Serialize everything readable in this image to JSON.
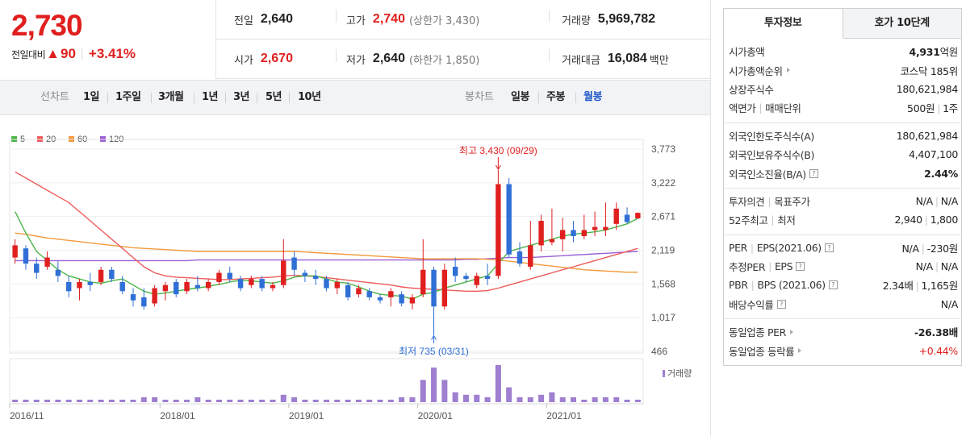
{
  "price": {
    "current": "2,730",
    "change_label": "전일대비",
    "change_value": "90",
    "change_pct": "+3.41%"
  },
  "stats": {
    "prev_close": {
      "label": "전일",
      "value": "2,640"
    },
    "high": {
      "label": "고가",
      "value": "2,740",
      "sub": "(상한가 3,430)"
    },
    "volume": {
      "label": "거래량",
      "value": "5,969,782"
    },
    "open": {
      "label": "시가",
      "value": "2,670"
    },
    "low": {
      "label": "저가",
      "value": "2,640",
      "sub": "(하한가 1,850)"
    },
    "turnover": {
      "label": "거래대금",
      "value": "16,084",
      "unit": "백만"
    }
  },
  "toolbar": {
    "line_label": "선차트",
    "line_periods": [
      "1일",
      "1주일",
      "3개월",
      "1년",
      "3년",
      "5년",
      "10년"
    ],
    "candle_label": "봉차트",
    "candle_periods": [
      "일봉",
      "주봉",
      "월봉"
    ],
    "candle_active": "월봉"
  },
  "colors": {
    "up": "#e01f1f",
    "down": "#2f6fd6",
    "ma5": "#4cb547",
    "ma20": "#ee5b5b",
    "ma60": "#f39a3c",
    "ma120": "#9b5fd6",
    "volume": "#9e7fd0"
  },
  "chart_data": {
    "type": "candlestick",
    "legend": [
      "5",
      "20",
      "60",
      "120"
    ],
    "y_ticks": [
      "3,773",
      "3,222",
      "2,671",
      "2,119",
      "1,568",
      "1,017",
      "466"
    ],
    "y_tick_values": [
      3773,
      3222,
      2671,
      2119,
      1568,
      1017,
      466
    ],
    "ylim": [
      466,
      3773
    ],
    "x_ticks": [
      "2016/11",
      "2018/01",
      "2019/01",
      "2020/01",
      "2021/01"
    ],
    "x_tick_index": [
      0,
      14,
      26,
      38,
      50
    ],
    "high_label": "최고 3,430 (09/29)",
    "low_label": "최저 735 (03/31)",
    "volume_label": "거래량",
    "candles": [
      [
        2000,
        2300,
        1900,
        2200
      ],
      [
        2150,
        2200,
        1800,
        1900
      ],
      [
        1900,
        2000,
        1650,
        1750
      ],
      [
        1850,
        2100,
        1800,
        2000
      ],
      [
        1800,
        1950,
        1600,
        1700
      ],
      [
        1600,
        1700,
        1350,
        1450
      ],
      [
        1500,
        1650,
        1300,
        1600
      ],
      [
        1600,
        1750,
        1450,
        1550
      ],
      [
        1600,
        1850,
        1550,
        1800
      ],
      [
        1800,
        1850,
        1600,
        1650
      ],
      [
        1600,
        1700,
        1400,
        1450
      ],
      [
        1400,
        1500,
        1200,
        1300
      ],
      [
        1350,
        1500,
        1150,
        1200
      ],
      [
        1250,
        1550,
        1200,
        1500
      ],
      [
        1450,
        1600,
        1300,
        1550
      ],
      [
        1600,
        1650,
        1350,
        1400
      ],
      [
        1450,
        1650,
        1400,
        1600
      ],
      [
        1550,
        1700,
        1450,
        1500
      ],
      [
        1500,
        1650,
        1450,
        1600
      ],
      [
        1600,
        1800,
        1550,
        1750
      ],
      [
        1750,
        1850,
        1600,
        1650
      ],
      [
        1650,
        1700,
        1450,
        1500
      ],
      [
        1550,
        1700,
        1500,
        1650
      ],
      [
        1650,
        1700,
        1450,
        1500
      ],
      [
        1500,
        1600,
        1450,
        1550
      ],
      [
        1550,
        2300,
        1500,
        1950
      ],
      [
        2000,
        2100,
        1700,
        1800
      ],
      [
        1750,
        1800,
        1600,
        1700
      ],
      [
        1700,
        1800,
        1550,
        1650
      ],
      [
        1650,
        1700,
        1450,
        1500
      ],
      [
        1500,
        1650,
        1400,
        1600
      ],
      [
        1550,
        1600,
        1300,
        1350
      ],
      [
        1400,
        1550,
        1350,
        1500
      ],
      [
        1450,
        1500,
        1300,
        1350
      ],
      [
        1350,
        1400,
        1250,
        1300
      ],
      [
        1350,
        1500,
        1200,
        1450
      ],
      [
        1400,
        1450,
        1200,
        1250
      ],
      [
        1250,
        1400,
        1150,
        1350
      ],
      [
        1400,
        2300,
        1350,
        1800
      ],
      [
        1800,
        1850,
        735,
        1200
      ],
      [
        1200,
        1900,
        1150,
        1800
      ],
      [
        1850,
        2000,
        1600,
        1700
      ],
      [
        1700,
        1750,
        1600,
        1650
      ],
      [
        1550,
        1750,
        1500,
        1700
      ],
      [
        1700,
        1900,
        1550,
        1650
      ],
      [
        1700,
        3430,
        1650,
        3200
      ],
      [
        3200,
        3300,
        2000,
        2050
      ],
      [
        2100,
        2250,
        1850,
        1900
      ],
      [
        1850,
        2600,
        1800,
        2200
      ],
      [
        2200,
        2700,
        2100,
        2600
      ],
      [
        2250,
        2800,
        2200,
        2300
      ],
      [
        2300,
        2650,
        2100,
        2450
      ],
      [
        2450,
        2600,
        2250,
        2350
      ],
      [
        2350,
        2700,
        2300,
        2450
      ],
      [
        2450,
        2750,
        2350,
        2500
      ],
      [
        2450,
        2900,
        2350,
        2500
      ],
      [
        2550,
        2900,
        2450,
        2800
      ],
      [
        2700,
        2820,
        2550,
        2580
      ],
      [
        2640,
        2740,
        2640,
        2730
      ]
    ],
    "ma5": [
      2750,
      2400,
      2100,
      1950,
      1800,
      1700,
      1650,
      1600,
      1580,
      1620,
      1650,
      1550,
      1450,
      1400,
      1420,
      1450,
      1480,
      1500,
      1530,
      1560,
      1600,
      1630,
      1620,
      1600,
      1580,
      1620,
      1680,
      1700,
      1700,
      1650,
      1600,
      1580,
      1520,
      1450,
      1400,
      1380,
      1370,
      1320,
      1400,
      1430,
      1500,
      1550,
      1600,
      1650,
      1700,
      1900,
      2100,
      2150,
      2200,
      2250,
      2300,
      2350,
      2380,
      2400,
      2420,
      2450,
      2500,
      2550,
      2640
    ],
    "ma20": [
      3400,
      3300,
      3200,
      3100,
      3000,
      2900,
      2750,
      2600,
      2450,
      2300,
      2150,
      2000,
      1850,
      1750,
      1700,
      1680,
      1670,
      1660,
      1650,
      1640,
      1640,
      1650,
      1660,
      1670,
      1680,
      1700,
      1710,
      1700,
      1690,
      1670,
      1650,
      1630,
      1610,
      1590,
      1570,
      1550,
      1520,
      1500,
      1490,
      1480,
      1470,
      1460,
      1450,
      1450,
      1460,
      1500,
      1550,
      1600,
      1650,
      1700,
      1750,
      1800,
      1850,
      1900,
      1950,
      2000,
      2050,
      2100,
      2150
    ],
    "ma60": [
      2400,
      2380,
      2350,
      2320,
      2300,
      2280,
      2260,
      2240,
      2220,
      2200,
      2180,
      2160,
      2150,
      2140,
      2130,
      2120,
      2110,
      2100,
      2100,
      2100,
      2100,
      2100,
      2100,
      2100,
      2100,
      2100,
      2100,
      2090,
      2080,
      2070,
      2060,
      2050,
      2040,
      2030,
      2020,
      2010,
      2000,
      1990,
      1980,
      1980,
      1980,
      1980,
      1980,
      1980,
      1970,
      1960,
      1940,
      1920,
      1900,
      1880,
      1860,
      1840,
      1820,
      1800,
      1790,
      1780,
      1770,
      1760,
      1760
    ],
    "ma120": [
      1950,
      1950,
      1950,
      1950,
      1950,
      1950,
      1950,
      1950,
      1950,
      1950,
      1950,
      1950,
      1950,
      1950,
      1950,
      1950,
      1950,
      1960,
      1960,
      1960,
      1960,
      1960,
      1960,
      1960,
      1960,
      1960,
      1960,
      1960,
      1960,
      1960,
      1960,
      1960,
      1960,
      1960,
      1960,
      1960,
      1960,
      1960,
      1960,
      1960,
      1960,
      1960,
      1970,
      1970,
      1980,
      1990,
      2000,
      2000,
      2000,
      2010,
      2020,
      2030,
      2040,
      2050,
      2060,
      2070,
      2080,
      2090,
      2100
    ],
    "volume": [
      1,
      1,
      1,
      1,
      1,
      1,
      1,
      1,
      1,
      1,
      1,
      1,
      2,
      2,
      1,
      1,
      1,
      2,
      1,
      1,
      1,
      1,
      1,
      1,
      1,
      3,
      2,
      1,
      1,
      1,
      1,
      1,
      1,
      1,
      1,
      1,
      2,
      2,
      9,
      14,
      9,
      4,
      3,
      3,
      2,
      15,
      6,
      2,
      2,
      3,
      4,
      2,
      2,
      1,
      2,
      2,
      2,
      1,
      1
    ]
  },
  "panel": {
    "tabs": [
      "투자정보",
      "호가 10단계"
    ],
    "section1": [
      {
        "label": "시가총액",
        "value_bold": "4,931",
        "value_suffix": "억원"
      },
      {
        "label": "시가총액순위",
        "value": "코스닥 185위"
      },
      {
        "label": "상장주식수",
        "value": "180,621,984"
      },
      {
        "label_a": "액면가",
        "label_b": "매매단위",
        "value_a": "500원",
        "value_b": "1주"
      }
    ],
    "section2": [
      {
        "label": "외국인한도주식수(A)",
        "value": "180,621,984"
      },
      {
        "label": "외국인보유주식수(B)",
        "value": "4,407,100"
      },
      {
        "label": "외국인소진율(B/A)",
        "value": "2.44%"
      }
    ],
    "section3": [
      {
        "label_a": "투자의견",
        "label_b": "목표주가",
        "value_a": "N/A",
        "value_b": "N/A"
      },
      {
        "label_a": "52주최고",
        "label_b": "최저",
        "value_a": "2,940",
        "value_b": "1,800"
      }
    ],
    "section4": [
      {
        "label_a": "PER",
        "label_b": "EPS(2021.06)",
        "value_a": "N/A",
        "value_b": "-230원"
      },
      {
        "label_a": "추정PER",
        "label_b": "EPS",
        "value_a": "N/A",
        "value_b": "N/A"
      },
      {
        "label_a": "PBR",
        "label_b": "BPS (2021.06)",
        "value_a": "2.34배",
        "value_b": "1,165원"
      },
      {
        "label": "배당수익률",
        "value": "N/A"
      }
    ],
    "section5": [
      {
        "label": "동일업종 PER",
        "value": "-26.38배"
      },
      {
        "label": "동일업종 등락률",
        "value": "+0.44%"
      }
    ]
  }
}
